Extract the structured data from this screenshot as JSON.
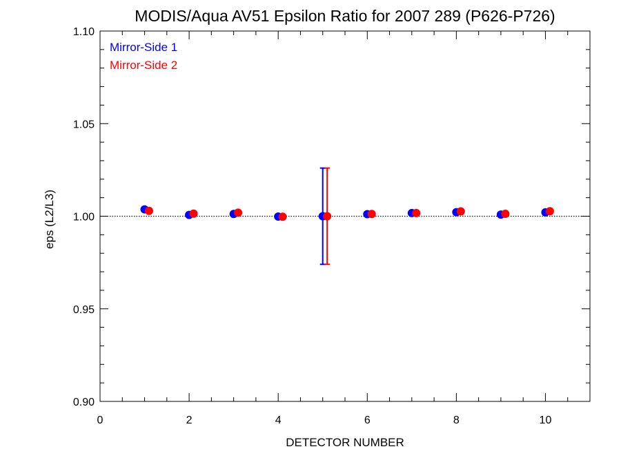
{
  "chart_data": {
    "type": "scatter",
    "title": "MODIS/Aqua AV51 Epsilon Ratio for 2007 289 (P626-P726)",
    "xlabel": "DETECTOR NUMBER",
    "ylabel": "eps (L2/L3)",
    "xlim": [
      0,
      11
    ],
    "ylim": [
      0.9,
      1.1
    ],
    "x_ticks": [
      0,
      2,
      4,
      6,
      8,
      10
    ],
    "x_tick_labels": [
      "0",
      "2",
      "4",
      "6",
      "8",
      "10"
    ],
    "y_ticks": [
      0.9,
      0.95,
      1.0,
      1.05,
      1.1
    ],
    "y_tick_labels": [
      "0.90",
      "0.95",
      "1.00",
      "1.05",
      "1.10"
    ],
    "reference_line": {
      "y": 1.0,
      "style": "dotted"
    },
    "legend_position": "top-left",
    "grid": false,
    "series": [
      {
        "name": "Mirror-Side 1",
        "color": "#0000ff",
        "x": [
          1,
          2,
          3,
          4,
          5,
          6,
          7,
          8,
          9,
          10
        ],
        "y": [
          1.0037,
          1.0007,
          1.0012,
          0.9998,
          1.0,
          1.0011,
          1.0017,
          1.0022,
          1.0009,
          1.0021
        ],
        "error_bars": [
          {
            "x": 5,
            "low": 0.974,
            "high": 1.026
          }
        ]
      },
      {
        "name": "Mirror-Side 2",
        "color": "#ff0000",
        "x": [
          1.1,
          2.1,
          3.1,
          4.1,
          5.1,
          6.1,
          7.1,
          8.1,
          9.1,
          10.1
        ],
        "y": [
          1.0029,
          1.0014,
          1.0019,
          0.9997,
          1.0,
          1.0012,
          1.0017,
          1.0026,
          1.0013,
          1.0027
        ],
        "error_bars": [
          {
            "x": 5.1,
            "low": 0.974,
            "high": 1.026
          }
        ]
      }
    ]
  }
}
